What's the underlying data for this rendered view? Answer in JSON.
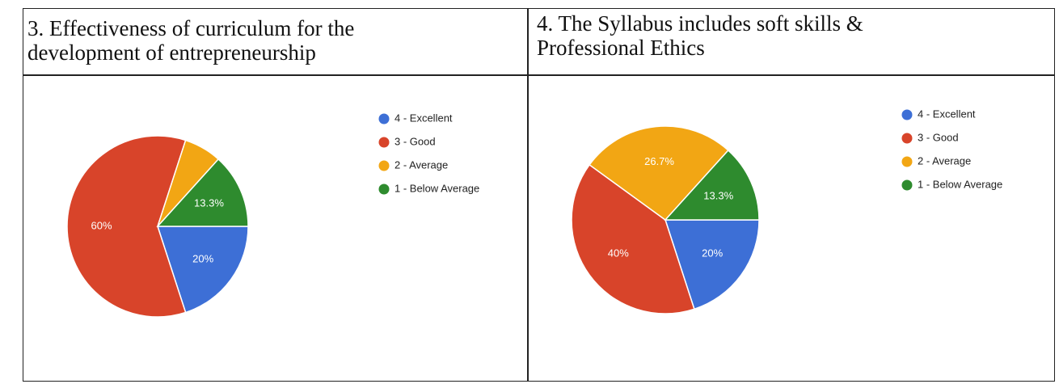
{
  "chart_data": [
    {
      "type": "pie",
      "title": "3. Effectiveness of curriculum for the development of entrepreneurship",
      "categories": [
        "4 - Excellent",
        "3 - Good",
        "2 - Average",
        "1 - Below Average"
      ],
      "values": [
        20,
        60,
        6.7,
        13.3
      ],
      "value_labels": [
        "20%",
        "60%",
        null,
        "13.3%"
      ],
      "colors": [
        "#3d6fd6",
        "#d8442a",
        "#f2a614",
        "#2e8b2e"
      ]
    },
    {
      "type": "pie",
      "title": "4. The Syllabus includes soft skills & Professional Ethics",
      "categories": [
        "4 - Excellent",
        "3 - Good",
        "2 - Average",
        "1 - Below Average"
      ],
      "values": [
        20,
        40,
        26.7,
        13.3
      ],
      "value_labels": [
        "20%",
        "40%",
        "26.7%",
        "13.3%"
      ],
      "colors": [
        "#3d6fd6",
        "#d8442a",
        "#f2a614",
        "#2e8b2e"
      ]
    }
  ]
}
